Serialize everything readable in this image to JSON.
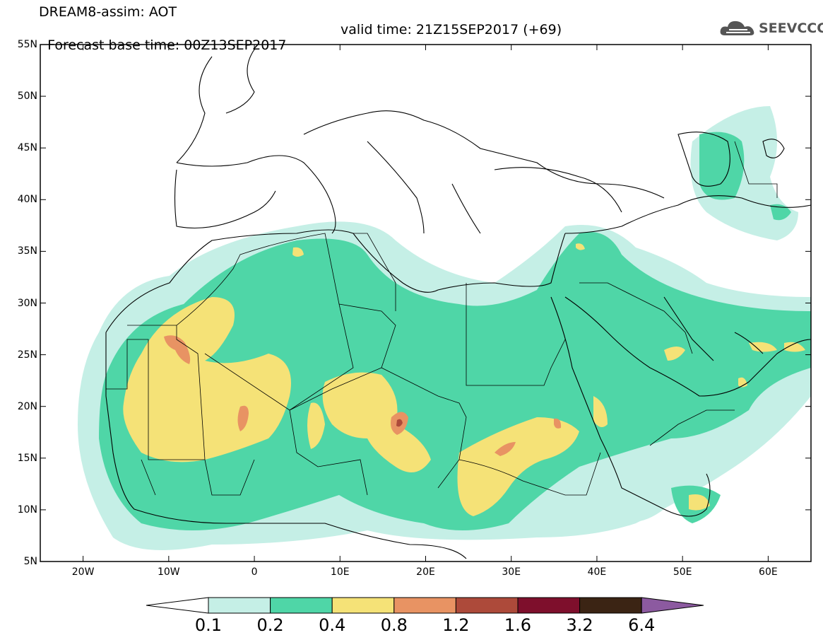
{
  "header": {
    "title_line1": "DREAM8-assim: AOT",
    "base_time": "Forecast base time: 00Z13SEP2017",
    "valid_time": "valid time: 21Z15SEP2017 (+69)",
    "logo_text": "SEEVCCC"
  },
  "map": {
    "projection": "lat-lon",
    "lon_range": [
      -25,
      65
    ],
    "lat_range": [
      5,
      55
    ],
    "lat_ticks": [
      "55N",
      "50N",
      "45N",
      "40N",
      "35N",
      "30N",
      "25N",
      "20N",
      "15N",
      "10N",
      "5N"
    ],
    "lon_ticks": [
      "20W",
      "10W",
      "0",
      "10E",
      "20E",
      "30E",
      "40E",
      "50E",
      "60E"
    ],
    "coastline_color": "#000000"
  },
  "colorbar": {
    "levels": [
      "0.1",
      "0.2",
      "0.4",
      "0.8",
      "1.2",
      "1.6",
      "3.2",
      "6.4"
    ],
    "colors": [
      "#ffffff",
      "#c5efe6",
      "#4fd6a7",
      "#f5e277",
      "#e89363",
      "#ad4a3a",
      "#7e0f2c",
      "#3b2414",
      "#8c5aa0"
    ]
  }
}
